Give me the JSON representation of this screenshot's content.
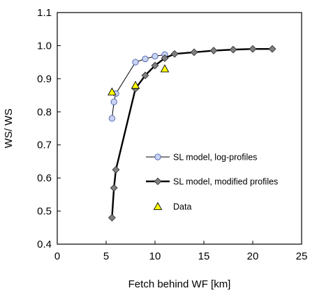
{
  "chart_data": {
    "type": "scatter",
    "title": "",
    "xlabel": "Fetch behind WF [km]",
    "ylabel": "WS/ WS",
    "xlim": [
      0,
      25
    ],
    "ylim": [
      0.4,
      1.1
    ],
    "xticks": [
      "0",
      "5",
      "10",
      "15",
      "20",
      "25"
    ],
    "yticks": [
      "0.4",
      "0.5",
      "0.6",
      "0.7",
      "0.8",
      "0.9",
      "1.0",
      "1.1"
    ],
    "grid": false,
    "legend_position": "right",
    "series": [
      {
        "name": "SL model, log-profiles",
        "style": "line-circle",
        "color": "#c9d3f2",
        "line_color": "#000000",
        "x": [
          5.6,
          5.8,
          6.0,
          8.0,
          9.0,
          10.0,
          11.0
        ],
        "y": [
          0.78,
          0.83,
          0.855,
          0.95,
          0.96,
          0.968,
          0.973
        ]
      },
      {
        "name": "SL model, modified profiles",
        "style": "line-diamond",
        "color": "#808080",
        "line_color": "#000000",
        "x": [
          5.6,
          5.8,
          6.0,
          8.0,
          9.0,
          10.0,
          11.0,
          12.0,
          14.0,
          16.0,
          18.0,
          20.0,
          22.0
        ],
        "y": [
          0.48,
          0.57,
          0.625,
          0.87,
          0.91,
          0.94,
          0.962,
          0.975,
          0.98,
          0.985,
          0.988,
          0.99,
          0.99
        ]
      },
      {
        "name": "Data",
        "style": "triangle",
        "color": "#ffff00",
        "line_color": "#000000",
        "x": [
          5.6,
          8.0,
          11.0
        ],
        "y": [
          0.86,
          0.88,
          0.93
        ]
      }
    ]
  }
}
